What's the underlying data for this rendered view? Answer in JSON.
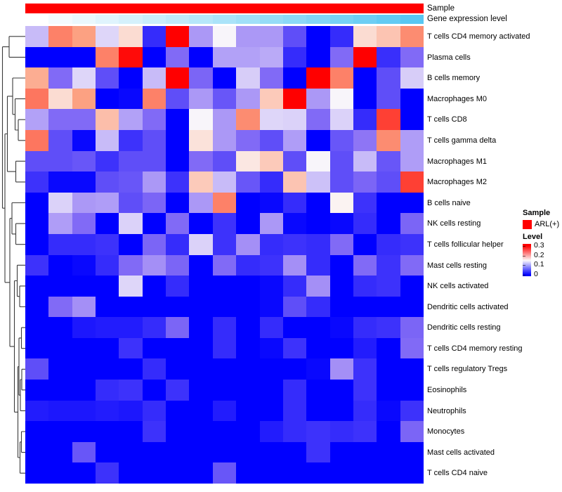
{
  "figure": {
    "annotations": {
      "sample": {
        "label": "Sample",
        "color": "#FF0000"
      },
      "gene_expression": {
        "label": "Gene expression level",
        "colors": [
          "#FFFFFF",
          "#F4FBFE",
          "#EAF8FD",
          "#E0F4FD",
          "#D5F1FC",
          "#CAEEFB",
          "#C0EAFA",
          "#B6E7FA",
          "#ABE3F9",
          "#A1E0F8",
          "#96DCF7",
          "#8CD9F7",
          "#82D5F6",
          "#77D2F5",
          "#6DCEF4",
          "#62CBF3",
          "#58C7F2"
        ]
      }
    },
    "legend": {
      "sample": {
        "title": "Sample",
        "items": [
          {
            "label": "ARL(+)",
            "color": "#FF0000"
          }
        ]
      },
      "level": {
        "title": "Level",
        "ticks": [
          "0.3",
          "0.2",
          "0.1",
          "0"
        ],
        "gradient_top": "#FF0000",
        "gradient_mid": "#FBF9FA",
        "gradient_bottom": "#0000FF"
      }
    }
  },
  "chart_data": {
    "type": "heatmap",
    "title": "",
    "rows": [
      "T cells CD4 memory activated",
      "Plasma cells",
      "B cells memory",
      "Macrophages M0",
      "T cells CD8",
      "T cells gamma delta",
      "Macrophages M1",
      "Macrophages M2",
      "B cells naive",
      "NK cells resting",
      "T cells follicular helper",
      "Mast cells resting",
      "NK cells activated",
      "Dendritic cells activated",
      "Dendritic cells resting",
      "T cells CD4 memory resting",
      "T cells regulatory  Tregs",
      "Eosinophils",
      "Neutrophils",
      "Monocytes",
      "Mast cells activated",
      "T cells CD4 naive"
    ],
    "n_columns": 17,
    "column_labels_visible": false,
    "column_sample_group": "ARL(+)",
    "color_scale": {
      "min": 0,
      "white_point": 0.15,
      "max": 0.3,
      "colors": [
        "#0000FF",
        "#FFFFFF",
        "#FF0000"
      ]
    },
    "values": [
      [
        0.115,
        0.24,
        0.225,
        0.13,
        0.175,
        0.028,
        0.3,
        0.095,
        0.148,
        0.095,
        0.095,
        0.05,
        0,
        0.028,
        0.175,
        0.195,
        0.235
      ],
      [
        0,
        0,
        0,
        0.24,
        0.295,
        0,
        0.068,
        0,
        0.1,
        0.1,
        0.105,
        0.028,
        0,
        0.068,
        0.3,
        0.03,
        0.068
      ],
      [
        0.215,
        0.068,
        0.13,
        0.05,
        0,
        0.115,
        0.3,
        0.065,
        0,
        0.125,
        0.068,
        0,
        0.3,
        0.24,
        0,
        0.05,
        0.125
      ],
      [
        0.245,
        0.175,
        0.225,
        0,
        0.005,
        0.24,
        0.05,
        0.095,
        0.055,
        0.095,
        0.19,
        0.3,
        0.095,
        0.148,
        0,
        0.05,
        0
      ],
      [
        0.1,
        0.068,
        0.068,
        0.2,
        0.1,
        0.068,
        0,
        0.148,
        0.095,
        0.235,
        0.13,
        0.128,
        0.068,
        0.128,
        0.028,
        0.27,
        0
      ],
      [
        0.245,
        0.05,
        0.005,
        0.115,
        0.032,
        0.05,
        0,
        0.17,
        0.095,
        0.068,
        0.05,
        0.098,
        0,
        0.055,
        0.075,
        0.235,
        0.098
      ],
      [
        0.05,
        0.05,
        0.055,
        0.032,
        0.05,
        0.05,
        0,
        0.068,
        0.05,
        0.165,
        0.19,
        0.05,
        0.148,
        0.05,
        0.115,
        0.055,
        0.098
      ],
      [
        0.032,
        0.005,
        0.005,
        0.05,
        0.055,
        0.095,
        0.032,
        0.19,
        0.115,
        0.055,
        0.028,
        0.195,
        0.118,
        0.05,
        0.065,
        0.05,
        0.27
      ],
      [
        0,
        0.128,
        0.095,
        0.098,
        0.05,
        0.065,
        0,
        0.095,
        0.24,
        0,
        0.005,
        0.028,
        0,
        0.155,
        0.032,
        0,
        0
      ],
      [
        0,
        0.098,
        0.068,
        0,
        0.128,
        0,
        0.068,
        0,
        0.032,
        0,
        0.095,
        0.005,
        0,
        0.005,
        0.028,
        0,
        0.065
      ],
      [
        0,
        0.028,
        0.028,
        0.032,
        0,
        0.065,
        0.028,
        0.128,
        0.032,
        0.09,
        0.028,
        0.032,
        0.028,
        0.068,
        0,
        0.028,
        0.032
      ],
      [
        0.032,
        0,
        0.005,
        0.028,
        0.068,
        0.09,
        0.065,
        0,
        0.068,
        0.028,
        0.032,
        0.09,
        0.028,
        0,
        0.068,
        0.032,
        0.068
      ],
      [
        0,
        0,
        0,
        0,
        0.13,
        0,
        0.028,
        0,
        0,
        0,
        0.005,
        0.028,
        0.09,
        0,
        0.028,
        0.032,
        0
      ],
      [
        0,
        0.068,
        0.09,
        0,
        0,
        0,
        0,
        0,
        0,
        0,
        0.005,
        0.05,
        0.028,
        0,
        0,
        0,
        0
      ],
      [
        0,
        0,
        0.015,
        0.018,
        0.018,
        0.028,
        0.065,
        0,
        0.028,
        0,
        0.028,
        0,
        0,
        0.005,
        0.028,
        0.032,
        0.065
      ],
      [
        0,
        0,
        0,
        0,
        0.032,
        0,
        0,
        0,
        0.028,
        0,
        0.005,
        0.032,
        0,
        0,
        0.018,
        0,
        0.068
      ],
      [
        0.05,
        0,
        0,
        0,
        0,
        0.028,
        0,
        0,
        0,
        0,
        0,
        0,
        0.005,
        0.09,
        0.032,
        0,
        0
      ],
      [
        0,
        0,
        0,
        0.028,
        0.032,
        0,
        0.032,
        0,
        0,
        0,
        0,
        0.028,
        0,
        0,
        0.032,
        0,
        0
      ],
      [
        0.018,
        0.015,
        0.015,
        0.018,
        0.015,
        0.028,
        0,
        0,
        0.018,
        0,
        0,
        0.028,
        0,
        0,
        0.028,
        0.005,
        0.032
      ],
      [
        0,
        0,
        0,
        0,
        0,
        0.032,
        0,
        0,
        0,
        0,
        0.018,
        0.028,
        0.032,
        0.028,
        0.032,
        0,
        0.065
      ],
      [
        0,
        0,
        0.055,
        0,
        0,
        0,
        0,
        0,
        0,
        0,
        0,
        0,
        0.032,
        0,
        0,
        0,
        0
      ],
      [
        0,
        0,
        0,
        0.032,
        0,
        0,
        0,
        0,
        0.055,
        0,
        0,
        0,
        0,
        0,
        0,
        0,
        0
      ]
    ],
    "row_dendrogram": {
      "merges": [
        [
          "L0",
          "L1",
          13
        ],
        [
          "L4",
          "L5",
          26
        ],
        [
          "L3",
          "M1",
          21.5
        ],
        [
          "L2",
          "M2",
          18
        ],
        [
          "L6",
          "L7",
          22.5
        ],
        [
          "M3",
          "M4",
          10.5
        ],
        [
          "L9",
          "L10",
          22.5
        ],
        [
          "L8",
          "M6",
          17
        ],
        [
          "L12",
          "L13",
          28
        ],
        [
          "L11",
          "M8",
          24.5
        ],
        [
          "L14",
          "L15",
          30.5
        ],
        [
          "L16",
          "L17",
          31
        ],
        [
          "M11",
          "L18",
          29
        ],
        [
          "M10",
          "M12",
          27
        ],
        [
          "L19",
          "L20",
          30.5
        ],
        [
          "M14",
          "L21",
          28.5
        ],
        [
          "M13",
          "M15",
          25.5
        ],
        [
          "M9",
          "M16",
          20.5
        ],
        [
          "M7",
          "M17",
          14
        ],
        [
          "M5",
          "M18",
          7
        ],
        [
          "M0",
          "M19",
          3.5
        ]
      ]
    }
  }
}
